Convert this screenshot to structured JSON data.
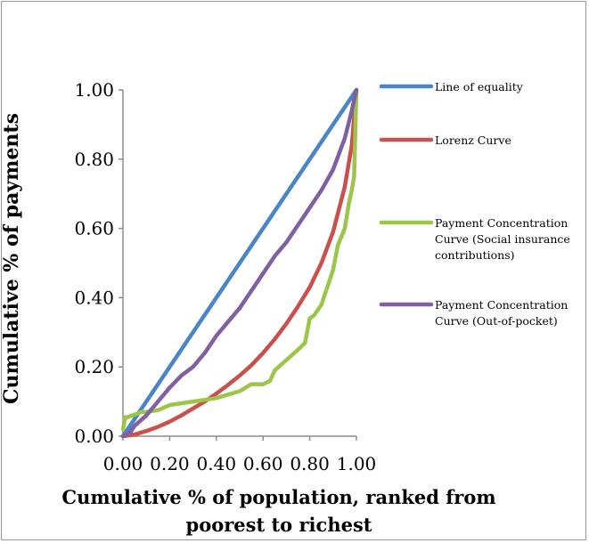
{
  "chart_data": {
    "type": "line",
    "title": "",
    "xlabel_lines": [
      "Cumulative % of population, ranked from",
      "poorest to richest"
    ],
    "ylabel": "Cumulative % of payments",
    "xlim": [
      0,
      1
    ],
    "ylim": [
      0,
      1
    ],
    "x_ticks": [
      "0.00",
      "0.20",
      "0.40",
      "0.60",
      "0.80",
      "1.00"
    ],
    "y_ticks": [
      "0.00",
      "0.20",
      "0.40",
      "0.60",
      "0.80",
      "1.00"
    ],
    "grid": false,
    "legend_position": "right",
    "series": [
      {
        "name": "Line of equality",
        "legend_lines": [
          "Line of equality"
        ],
        "color": "#4a86c5",
        "x": [
          0,
          1
        ],
        "y": [
          0,
          1
        ]
      },
      {
        "name": "Lorenz Curve",
        "legend_lines": [
          "Lorenz Curve"
        ],
        "color": "#c9504c",
        "x": [
          0,
          0.05,
          0.1,
          0.15,
          0.2,
          0.25,
          0.3,
          0.35,
          0.4,
          0.45,
          0.5,
          0.55,
          0.6,
          0.65,
          0.7,
          0.75,
          0.8,
          0.85,
          0.9,
          0.95,
          0.98,
          1.0
        ],
        "y": [
          0,
          0.005,
          0.015,
          0.027,
          0.042,
          0.06,
          0.08,
          0.1,
          0.123,
          0.148,
          0.175,
          0.205,
          0.24,
          0.28,
          0.325,
          0.375,
          0.43,
          0.5,
          0.59,
          0.72,
          0.84,
          1.0
        ]
      },
      {
        "name": "Payment Concentration Curve (Social insurance contributions)",
        "legend_lines": [
          "Payment Concentration",
          "Curve (Social insurance",
          "contributions)"
        ],
        "color": "#9bc64a",
        "x": [
          0,
          0.01,
          0.02,
          0.04,
          0.06,
          0.08,
          0.1,
          0.15,
          0.2,
          0.3,
          0.4,
          0.45,
          0.5,
          0.55,
          0.6,
          0.63,
          0.65,
          0.7,
          0.75,
          0.78,
          0.8,
          0.82,
          0.85,
          0.9,
          0.92,
          0.95,
          0.97,
          0.98,
          0.99,
          1.0
        ],
        "y": [
          0.02,
          0.055,
          0.055,
          0.06,
          0.065,
          0.07,
          0.07,
          0.075,
          0.09,
          0.1,
          0.11,
          0.12,
          0.13,
          0.15,
          0.15,
          0.16,
          0.19,
          0.22,
          0.25,
          0.27,
          0.34,
          0.35,
          0.38,
          0.48,
          0.55,
          0.6,
          0.68,
          0.71,
          0.75,
          1.0
        ]
      },
      {
        "name": "Payment Concentration Curve (Out-of-pocket)",
        "legend_lines": [
          "Payment Concentration",
          "Curve (Out-of-pocket)"
        ],
        "color": "#8060a3",
        "x": [
          0,
          0.03,
          0.05,
          0.1,
          0.15,
          0.2,
          0.25,
          0.3,
          0.35,
          0.4,
          0.45,
          0.5,
          0.55,
          0.6,
          0.65,
          0.7,
          0.75,
          0.8,
          0.85,
          0.9,
          0.95,
          0.98,
          1.0
        ],
        "y": [
          0,
          0.01,
          0.03,
          0.06,
          0.1,
          0.14,
          0.175,
          0.2,
          0.24,
          0.29,
          0.33,
          0.37,
          0.42,
          0.47,
          0.52,
          0.56,
          0.61,
          0.66,
          0.71,
          0.77,
          0.86,
          0.94,
          1.0
        ]
      }
    ]
  }
}
